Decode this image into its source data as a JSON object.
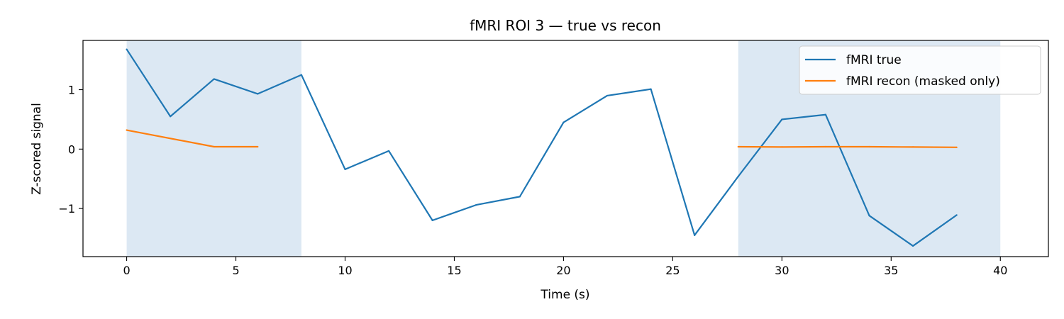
{
  "chart_data": {
    "type": "line",
    "title": "fMRI ROI 3 — true vs recon",
    "xlabel": "Time (s)",
    "ylabel": "Z-scored signal",
    "xlim": [
      -2,
      42.2
    ],
    "ylim": [
      -1.81,
      1.83
    ],
    "xticks": [
      0,
      5,
      10,
      15,
      20,
      25,
      30,
      35,
      40
    ],
    "xtick_labels": [
      "0",
      "5",
      "10",
      "15",
      "20",
      "25",
      "30",
      "35",
      "40"
    ],
    "yticks": [
      -1,
      0,
      1
    ],
    "ytick_labels": [
      "−1",
      "0",
      "1"
    ],
    "grid": false,
    "legend_position": "upper right",
    "masked_regions": [
      [
        0,
        8
      ],
      [
        28,
        40
      ]
    ],
    "masked_region_color": "#dce8f3",
    "series": [
      {
        "name": "fMRI true",
        "color": "#1f77b4",
        "x": [
          0,
          2,
          4,
          6,
          8,
          10,
          12,
          14,
          16,
          18,
          20,
          22,
          24,
          26,
          28,
          30,
          32,
          34,
          36,
          38
        ],
        "y": [
          1.68,
          0.55,
          1.18,
          0.93,
          1.25,
          -0.34,
          -0.03,
          -1.2,
          -0.94,
          -0.8,
          0.45,
          0.9,
          1.01,
          -1.45,
          -0.46,
          0.5,
          0.58,
          -1.12,
          -1.63,
          -1.11
        ]
      },
      {
        "name": "fMRI recon (masked only)",
        "color": "#ff7f0e",
        "segments": [
          {
            "x": [
              0,
              4,
              6
            ],
            "y": [
              0.32,
              0.04,
              0.04
            ]
          },
          {
            "x": [
              28,
              30,
              32,
              34,
              36,
              38
            ],
            "y": [
              0.04,
              0.035,
              0.04,
              0.04,
              0.035,
              0.03
            ]
          }
        ]
      }
    ]
  }
}
